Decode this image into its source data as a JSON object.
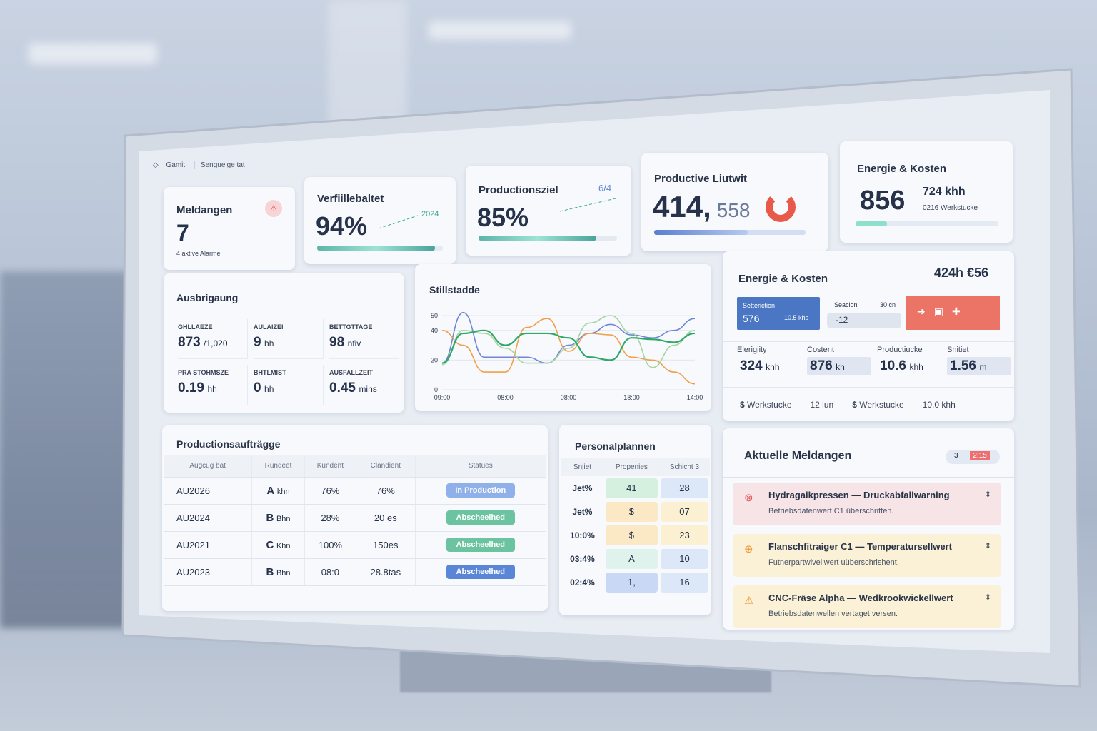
{
  "nav": {
    "home": "Gamit",
    "section": "Sengueige tat"
  },
  "kpi": {
    "alerts": {
      "title": "Meldangen",
      "value": "7",
      "sub": "4 aktive Alarme"
    },
    "availability": {
      "title": "Verfiillebaltet",
      "value": "94%",
      "trend": "2024",
      "progress": 0.94
    },
    "target": {
      "title": "Productionsziel",
      "value": "85%",
      "trend": "6/4",
      "progress": 0.85
    },
    "output": {
      "title": "Productive Liutwit",
      "value": "414,",
      "value2": "558",
      "progress": 0.62
    },
    "energy": {
      "title": "Energie & Kosten",
      "value": "856",
      "value2": "724 khh",
      "sub": "0216 Werkstucke",
      "progress": 0.22
    }
  },
  "util": {
    "title": "Ausbrigaung",
    "items": [
      {
        "label": "GHLLAEZE",
        "value": "873",
        "unit": "/1,020"
      },
      {
        "label": "AULAIZEI",
        "value": "9",
        "unit": "hh"
      },
      {
        "label": "BETTGTTAGE",
        "value": "98",
        "unit": "nfiv"
      },
      {
        "label": "PRA STOHMSZE",
        "value": "0.19",
        "unit": "hh"
      },
      {
        "label": "BHTLMIST",
        "value": "0",
        "unit": "hh"
      },
      {
        "label": "AUSFALLZEIT",
        "value": "0.45",
        "unit": "mins"
      }
    ]
  },
  "chart_data": {
    "type": "line",
    "title": "Stillstadde",
    "ylim": [
      0,
      50
    ],
    "yticks": [
      0,
      20,
      40,
      50
    ],
    "xticks": [
      "09:00",
      "08:00",
      "08:00",
      "18:00",
      "14:00"
    ],
    "grid": true,
    "series": [
      {
        "color": "#6f86d6",
        "values": [
          18,
          52,
          22,
          22,
          22,
          18,
          30,
          38,
          44,
          37,
          35,
          40,
          48
        ]
      },
      {
        "color": "#f0a04a",
        "values": [
          40,
          30,
          12,
          12,
          42,
          48,
          26,
          38,
          37,
          22,
          20,
          12,
          4
        ]
      },
      {
        "color": "#a8d4a0",
        "values": [
          17,
          40,
          38,
          28,
          18,
          18,
          28,
          45,
          50,
          38,
          15,
          30,
          40
        ]
      },
      {
        "color": "#2fa86a",
        "values": [
          18,
          38,
          40,
          30,
          38,
          38,
          35,
          22,
          20,
          35,
          34,
          32,
          38
        ]
      }
    ]
  },
  "energy": {
    "title": "Energie & Kosten",
    "total": "424h €56",
    "tile1": {
      "label": "Setteriction",
      "value": "576",
      "sub": "10.5 khs"
    },
    "tile2": {
      "label": "Seacion",
      "sub": "30 cn",
      "value": "-12"
    },
    "stats": [
      {
        "label": "Elerigiity",
        "value": "324",
        "unit": "khh"
      },
      {
        "label": "Costent",
        "value": "876",
        "unit": "kh"
      },
      {
        "label": "Productiucke",
        "value": "10.6",
        "unit": "khh"
      },
      {
        "label": "Snitiet",
        "value": "1.56",
        "unit": "m"
      }
    ],
    "footer": [
      {
        "icon": "$",
        "label": "Werkstucke"
      },
      {
        "label": "12 lun"
      },
      {
        "icon": "$",
        "label": "Werkstucke"
      },
      {
        "label": "10.0 khh"
      }
    ]
  },
  "orders": {
    "title": "Productionsaufträgge",
    "columns": [
      "Augcug bat",
      "Rundeet",
      "Kundent",
      "Clandient",
      "Statues"
    ],
    "rows": [
      {
        "id": "AU2026",
        "cls": "A",
        "unit": "khn",
        "pct": "76%",
        "val": "76%",
        "status": "In Production",
        "color": "#8fb0e8"
      },
      {
        "id": "AU2024",
        "cls": "B",
        "unit": "Bhn",
        "pct": "28%",
        "val": "20 es",
        "status": "Abscheelhed",
        "color": "#6cc3a0"
      },
      {
        "id": "AU2021",
        "cls": "C",
        "unit": "Khn",
        "pct": "100%",
        "val": "150es",
        "status": "Abscheelhed",
        "color": "#6cc3a0"
      },
      {
        "id": "AU2023",
        "cls": "B",
        "unit": "Bhn",
        "pct": "08:0",
        "val": "28.8tas",
        "status": "Abscheelhed",
        "color": "#5b86d8"
      }
    ]
  },
  "staff": {
    "title": "Personalplannen",
    "columns": [
      "Snjiet",
      "Propenies",
      "Schicht 3"
    ],
    "rows": [
      {
        "a": "Jet%",
        "b": "41",
        "bc": "#d6f0df",
        "c": "28",
        "cc": "#dce7f8"
      },
      {
        "a": "Jet%",
        "b": "$",
        "bc": "#fbe8c4",
        "c": "07",
        "cc": "#fbf0d2"
      },
      {
        "a": "10:0%",
        "b": "$",
        "bc": "#fbe8c4",
        "c": "23",
        "cc": "#fbf0d2"
      },
      {
        "a": "03:4%",
        "b": "A",
        "bc": "#dff2ec",
        "c": "10",
        "cc": "#dce7f8"
      },
      {
        "a": "02:4%",
        "b": "1,",
        "bc": "#c9d8f4",
        "c": "16",
        "cc": "#dce7f8"
      }
    ]
  },
  "messages": {
    "title": "Aktuelle Meldangen",
    "badge_a": "3",
    "badge_b": "2:15",
    "items": [
      {
        "title": "Hydragaikpressen — Druckabfallwarning",
        "desc": "Betriebsdatenwert C1 überschritten.",
        "bg": "#f6e4e6",
        "color": "#e05a5a"
      },
      {
        "title": "Flanschfitraiger C1 — Temperatursellwert",
        "desc": "Futnerpartwivellwert uüberschrishent.",
        "bg": "#fbf1d6",
        "color": "#ef9a3a"
      },
      {
        "title": "CNC-Fräse Alpha — Wedkrookwickellwert",
        "desc": "Betriebsdatenwellen vertaget versen.",
        "bg": "#fbf1d6",
        "color": "#ef9a3a"
      }
    ]
  }
}
